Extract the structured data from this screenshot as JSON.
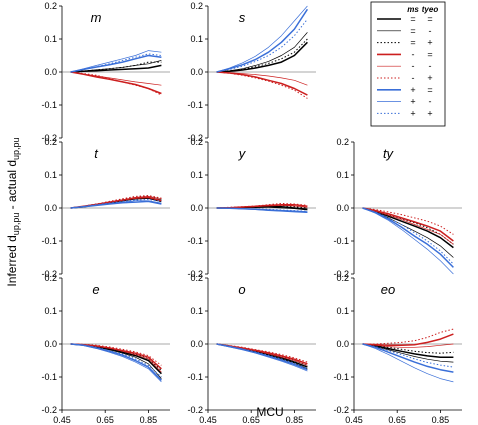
{
  "chart_data": {
    "type": "line",
    "xlabel": "MCU",
    "ylabel_main": "Inferred d",
    "ylabel_sub": "up,pu",
    "ylabel_mid": " - actual d",
    "ylabel_sub2": "up,pu",
    "xlim": [
      0.45,
      0.95
    ],
    "ylim": [
      -0.2,
      0.2
    ],
    "xticks": [
      "0.45",
      "0.65",
      "0.85"
    ],
    "yticks": [
      "0.2",
      "0.1",
      "0.0",
      "-0.1",
      "-0.2"
    ],
    "x": [
      0.49,
      0.55,
      0.61,
      0.67,
      0.73,
      0.79,
      0.85,
      0.91
    ],
    "legend": {
      "placement": "top-right",
      "headers": [
        "ms",
        "tyeo"
      ],
      "rows": [
        {
          "color": "#000000",
          "style": "thick",
          "ms": "=",
          "tyeo": "="
        },
        {
          "color": "#000000",
          "style": "thin",
          "ms": "=",
          "tyeo": "-"
        },
        {
          "color": "#000000",
          "style": "dotted",
          "ms": "=",
          "tyeo": "+"
        },
        {
          "color": "#cc1f1f",
          "style": "thick",
          "ms": "-",
          "tyeo": "="
        },
        {
          "color": "#cc1f1f",
          "style": "thin",
          "ms": "-",
          "tyeo": "-"
        },
        {
          "color": "#cc1f1f",
          "style": "dotted",
          "ms": "-",
          "tyeo": "+"
        },
        {
          "color": "#3a6fd8",
          "style": "thick",
          "ms": "+",
          "tyeo": "="
        },
        {
          "color": "#3a6fd8",
          "style": "thin",
          "ms": "+",
          "tyeo": "-"
        },
        {
          "color": "#3a6fd8",
          "style": "dotted",
          "ms": "+",
          "tyeo": "+"
        }
      ]
    },
    "panels": [
      {
        "title": "m",
        "series": [
          [
            0,
            0.002,
            0.004,
            0.006,
            0.008,
            0.01,
            0.012,
            0.02
          ],
          [
            0,
            0.003,
            0.007,
            0.01,
            0.014,
            0.02,
            0.025,
            0.035
          ],
          [
            0,
            0.003,
            0.006,
            0.01,
            0.014,
            0.02,
            0.03,
            0.03
          ],
          [
            0,
            -0.007,
            -0.015,
            -0.022,
            -0.03,
            -0.038,
            -0.05,
            -0.065
          ],
          [
            0,
            -0.006,
            -0.012,
            -0.018,
            -0.024,
            -0.03,
            -0.035,
            -0.04
          ],
          [
            0,
            -0.005,
            -0.01,
            -0.02,
            -0.03,
            -0.04,
            -0.05,
            -0.07
          ],
          [
            0,
            0.008,
            0.015,
            0.022,
            0.03,
            0.04,
            0.05,
            0.045
          ],
          [
            0,
            0.01,
            0.02,
            0.03,
            0.04,
            0.05,
            0.065,
            0.06
          ],
          [
            0,
            0.008,
            0.016,
            0.025,
            0.035,
            0.045,
            0.055,
            0.05
          ]
        ]
      },
      {
        "title": "s",
        "series": [
          [
            0,
            0.002,
            0.006,
            0.012,
            0.02,
            0.03,
            0.05,
            0.09
          ],
          [
            0,
            0.004,
            0.01,
            0.02,
            0.032,
            0.05,
            0.075,
            0.12
          ],
          [
            0,
            0.003,
            0.008,
            0.016,
            0.026,
            0.04,
            0.06,
            0.1
          ],
          [
            0,
            -0.003,
            -0.008,
            -0.015,
            -0.025,
            -0.035,
            -0.05,
            -0.07
          ],
          [
            0,
            -0.002,
            -0.005,
            -0.008,
            -0.012,
            -0.018,
            -0.025,
            -0.04
          ],
          [
            0,
            -0.004,
            -0.01,
            -0.018,
            -0.028,
            -0.04,
            -0.055,
            -0.08
          ],
          [
            0,
            0.01,
            0.022,
            0.038,
            0.06,
            0.09,
            0.13,
            0.19
          ],
          [
            0,
            0.012,
            0.028,
            0.048,
            0.075,
            0.11,
            0.155,
            0.2
          ],
          [
            0,
            0.008,
            0.018,
            0.032,
            0.05,
            0.075,
            0.11,
            0.16
          ]
        ]
      },
      {
        "title": "t",
        "series": [
          [
            0,
            0.004,
            0.01,
            0.016,
            0.022,
            0.028,
            0.03,
            0.02
          ],
          [
            0,
            0.004,
            0.01,
            0.016,
            0.022,
            0.028,
            0.032,
            0.025
          ],
          [
            0,
            0.005,
            0.012,
            0.019,
            0.026,
            0.032,
            0.036,
            0.028
          ],
          [
            0,
            0.005,
            0.011,
            0.018,
            0.024,
            0.03,
            0.032,
            0.022
          ],
          [
            0,
            0.005,
            0.011,
            0.018,
            0.025,
            0.032,
            0.035,
            0.028
          ],
          [
            0,
            0.005,
            0.012,
            0.02,
            0.028,
            0.035,
            0.038,
            0.03
          ],
          [
            0,
            0.004,
            0.008,
            0.012,
            0.016,
            0.018,
            0.02,
            0.012
          ],
          [
            0,
            0.004,
            0.009,
            0.014,
            0.018,
            0.022,
            0.022,
            0.015
          ],
          [
            0,
            0.005,
            0.01,
            0.015,
            0.02,
            0.024,
            0.026,
            0.02
          ]
        ]
      },
      {
        "title": "y",
        "series": [
          [
            0,
            0,
            0.002,
            0.002,
            0.004,
            0.004,
            0,
            -0.004
          ],
          [
            0,
            0,
            0,
            0.002,
            0.002,
            0,
            -0.002,
            -0.006
          ],
          [
            0,
            0.001,
            0.003,
            0.004,
            0.006,
            0.008,
            0.004,
            0
          ],
          [
            0,
            0.001,
            0.003,
            0.005,
            0.008,
            0.01,
            0.01,
            0.005
          ],
          [
            0,
            0.001,
            0.002,
            0.004,
            0.006,
            0.008,
            0.006,
            0.002
          ],
          [
            0,
            0.002,
            0.004,
            0.006,
            0.01,
            0.014,
            0.012,
            0.008
          ],
          [
            0,
            -0.001,
            -0.002,
            -0.004,
            -0.006,
            -0.008,
            -0.01,
            -0.012
          ],
          [
            0,
            -0.001,
            -0.003,
            -0.005,
            -0.008,
            -0.01,
            -0.012,
            -0.014
          ],
          [
            0,
            -0.001,
            -0.002,
            -0.003,
            -0.004,
            -0.006,
            -0.008,
            -0.01
          ]
        ]
      },
      {
        "title": "ty",
        "series": [
          [
            0,
            -0.01,
            -0.025,
            -0.04,
            -0.055,
            -0.07,
            -0.09,
            -0.12
          ],
          [
            0,
            -0.012,
            -0.03,
            -0.05,
            -0.07,
            -0.09,
            -0.115,
            -0.15
          ],
          [
            0,
            -0.008,
            -0.02,
            -0.032,
            -0.045,
            -0.06,
            -0.08,
            -0.11
          ],
          [
            0,
            -0.008,
            -0.018,
            -0.03,
            -0.042,
            -0.055,
            -0.07,
            -0.1
          ],
          [
            0,
            -0.01,
            -0.022,
            -0.035,
            -0.05,
            -0.065,
            -0.08,
            -0.11
          ],
          [
            0,
            -0.005,
            -0.012,
            -0.02,
            -0.03,
            -0.04,
            -0.055,
            -0.08
          ],
          [
            0,
            -0.014,
            -0.034,
            -0.058,
            -0.085,
            -0.11,
            -0.14,
            -0.18
          ],
          [
            0,
            -0.016,
            -0.038,
            -0.065,
            -0.095,
            -0.125,
            -0.16,
            -0.2
          ],
          [
            0,
            -0.012,
            -0.03,
            -0.05,
            -0.075,
            -0.1,
            -0.13,
            -0.17
          ]
        ]
      },
      {
        "title": "e",
        "series": [
          [
            0,
            -0.003,
            -0.008,
            -0.015,
            -0.025,
            -0.035,
            -0.05,
            -0.09
          ],
          [
            0,
            -0.003,
            -0.01,
            -0.018,
            -0.028,
            -0.04,
            -0.06,
            -0.105
          ],
          [
            0,
            -0.002,
            -0.006,
            -0.012,
            -0.02,
            -0.03,
            -0.045,
            -0.08
          ],
          [
            0,
            -0.002,
            -0.006,
            -0.012,
            -0.02,
            -0.028,
            -0.04,
            -0.075
          ],
          [
            0,
            -0.002,
            -0.007,
            -0.013,
            -0.022,
            -0.032,
            -0.045,
            -0.085
          ],
          [
            0,
            -0.001,
            -0.004,
            -0.009,
            -0.016,
            -0.024,
            -0.035,
            -0.065
          ],
          [
            0,
            -0.004,
            -0.012,
            -0.022,
            -0.034,
            -0.05,
            -0.07,
            -0.11
          ],
          [
            0,
            -0.005,
            -0.014,
            -0.025,
            -0.038,
            -0.055,
            -0.075,
            -0.115
          ],
          [
            0,
            -0.003,
            -0.01,
            -0.02,
            -0.03,
            -0.045,
            -0.065,
            -0.1
          ]
        ]
      },
      {
        "title": "o",
        "series": [
          [
            0,
            -0.007,
            -0.014,
            -0.022,
            -0.032,
            -0.042,
            -0.055,
            -0.07
          ],
          [
            0,
            -0.008,
            -0.016,
            -0.025,
            -0.035,
            -0.046,
            -0.058,
            -0.075
          ],
          [
            0,
            -0.006,
            -0.012,
            -0.02,
            -0.028,
            -0.038,
            -0.05,
            -0.065
          ],
          [
            0,
            -0.006,
            -0.012,
            -0.019,
            -0.027,
            -0.036,
            -0.046,
            -0.06
          ],
          [
            0,
            -0.007,
            -0.013,
            -0.021,
            -0.03,
            -0.04,
            -0.05,
            -0.065
          ],
          [
            0,
            -0.005,
            -0.01,
            -0.017,
            -0.024,
            -0.032,
            -0.042,
            -0.055
          ],
          [
            0,
            -0.008,
            -0.016,
            -0.026,
            -0.037,
            -0.049,
            -0.062,
            -0.078
          ],
          [
            0,
            -0.009,
            -0.018,
            -0.028,
            -0.04,
            -0.052,
            -0.066,
            -0.082
          ],
          [
            0,
            -0.007,
            -0.015,
            -0.024,
            -0.034,
            -0.045,
            -0.058,
            -0.074
          ]
        ]
      },
      {
        "title": "eo",
        "series": [
          [
            0,
            -0.006,
            -0.014,
            -0.022,
            -0.03,
            -0.036,
            -0.04,
            -0.04
          ],
          [
            0,
            -0.008,
            -0.018,
            -0.028,
            -0.038,
            -0.046,
            -0.052,
            -0.055
          ],
          [
            0,
            -0.004,
            -0.01,
            -0.016,
            -0.022,
            -0.026,
            -0.028,
            -0.025
          ],
          [
            0,
            -0.002,
            -0.004,
            -0.004,
            -0.002,
            0.005,
            0.015,
            0.03
          ],
          [
            0,
            -0.004,
            -0.008,
            -0.01,
            -0.01,
            -0.008,
            -0.004,
            0
          ],
          [
            0,
            0,
            0.002,
            0.005,
            0.01,
            0.02,
            0.035,
            0.045
          ],
          [
            0,
            -0.01,
            -0.025,
            -0.04,
            -0.055,
            -0.068,
            -0.078,
            -0.085
          ],
          [
            0,
            -0.014,
            -0.032,
            -0.052,
            -0.072,
            -0.09,
            -0.105,
            -0.115
          ],
          [
            0,
            -0.008,
            -0.02,
            -0.032,
            -0.045,
            -0.056,
            -0.064,
            -0.07
          ]
        ]
      }
    ]
  }
}
